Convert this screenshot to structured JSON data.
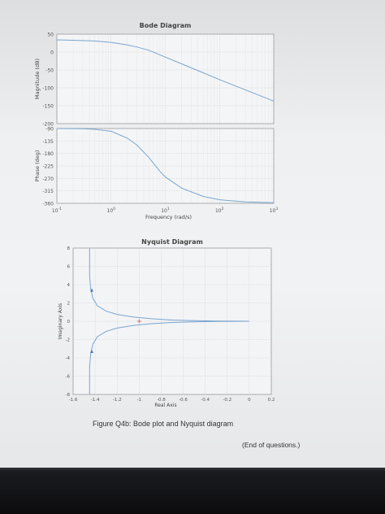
{
  "chart_data": [
    {
      "type": "line",
      "title": "Bode Diagram",
      "panels": [
        {
          "ylabel": "Magnitude (dB)",
          "yticks": [
            50,
            0,
            -50,
            -100,
            -150,
            -200
          ],
          "ylim": [
            -200,
            50
          ],
          "series": [
            {
              "x": [
                0.1,
                0.2,
                0.5,
                1,
                2,
                3,
                5,
                10,
                20,
                50,
                100,
                200,
                1000
              ],
              "values": [
                34,
                33,
                31,
                27,
                20,
                14,
                5,
                -14,
                -33,
                -58,
                -77,
                -95,
                -137
              ]
            }
          ]
        },
        {
          "ylabel": "Phase (deg)",
          "yticks": [
            -90,
            -135,
            -180,
            -225,
            -270,
            -315,
            -360
          ],
          "ylim": [
            -360,
            -90
          ],
          "series": [
            {
              "x": [
                0.1,
                0.3,
                0.5,
                1,
                2,
                3,
                5,
                8,
                10,
                20,
                50,
                100,
                300,
                1000
              ],
              "values": [
                -90,
                -91,
                -93,
                -100,
                -125,
                -150,
                -195,
                -245,
                -265,
                -305,
                -335,
                -347,
                -355,
                -358
              ]
            }
          ]
        }
      ],
      "xlabel": "Frequency (rad/s)",
      "xscale": "log",
      "xlim": [
        0.1,
        1000
      ],
      "xticks": [
        {
          "base": "10",
          "exp": "-1"
        },
        {
          "base": "10",
          "exp": "0"
        },
        {
          "base": "10",
          "exp": "1"
        },
        {
          "base": "10",
          "exp": "2"
        },
        {
          "base": "10",
          "exp": "3"
        }
      ],
      "grid": true
    },
    {
      "type": "line",
      "title": "Nyquist Diagram",
      "xlabel": "Real Axis",
      "ylabel": "Imaginary Axis",
      "xlim": [
        -1.6,
        0.2
      ],
      "ylim": [
        -8,
        8
      ],
      "xticks": [
        "-1.6",
        "-1.4",
        "-1.2",
        "-1",
        "-0.8",
        "-0.6",
        "-0.4",
        "-0.2",
        "0",
        "0.2"
      ],
      "yticks": [
        "8",
        "6",
        "4",
        "2",
        "0",
        "-2",
        "-4",
        "-6",
        "-8"
      ],
      "series": [
        {
          "x": [
            -1.45,
            -1.45,
            -1.44,
            -1.42,
            -1.38,
            -1.3,
            -1.2,
            -1.05,
            -0.9,
            -0.7,
            -0.5,
            -0.3,
            -0.1,
            0
          ],
          "values": [
            8,
            5,
            3.5,
            2.5,
            1.7,
            1.1,
            0.75,
            0.45,
            0.28,
            0.13,
            0.06,
            0.025,
            0.005,
            0
          ]
        },
        {
          "x": [
            -1.45,
            -1.45,
            -1.44,
            -1.42,
            -1.38,
            -1.3,
            -1.2,
            -1.05,
            -0.9,
            -0.7,
            -0.5,
            -0.3,
            -0.1,
            0
          ],
          "values": [
            -8,
            -5,
            -3.5,
            -2.5,
            -1.7,
            -1.1,
            -0.75,
            -0.45,
            -0.28,
            -0.13,
            -0.06,
            -0.025,
            -0.005,
            0
          ]
        }
      ],
      "markers": [
        {
          "x": -1,
          "y": 0,
          "symbol": "+",
          "color": "#e05050"
        }
      ],
      "grid": true
    }
  ],
  "caption": "Figure Q4b: Bode plot and Nyquist diagram",
  "end_note": "(End of questions.)",
  "colors": {
    "curve": "#7aa5cf",
    "axis": "#8a8c90",
    "grid": "#c9cbcf",
    "text": "#555"
  }
}
